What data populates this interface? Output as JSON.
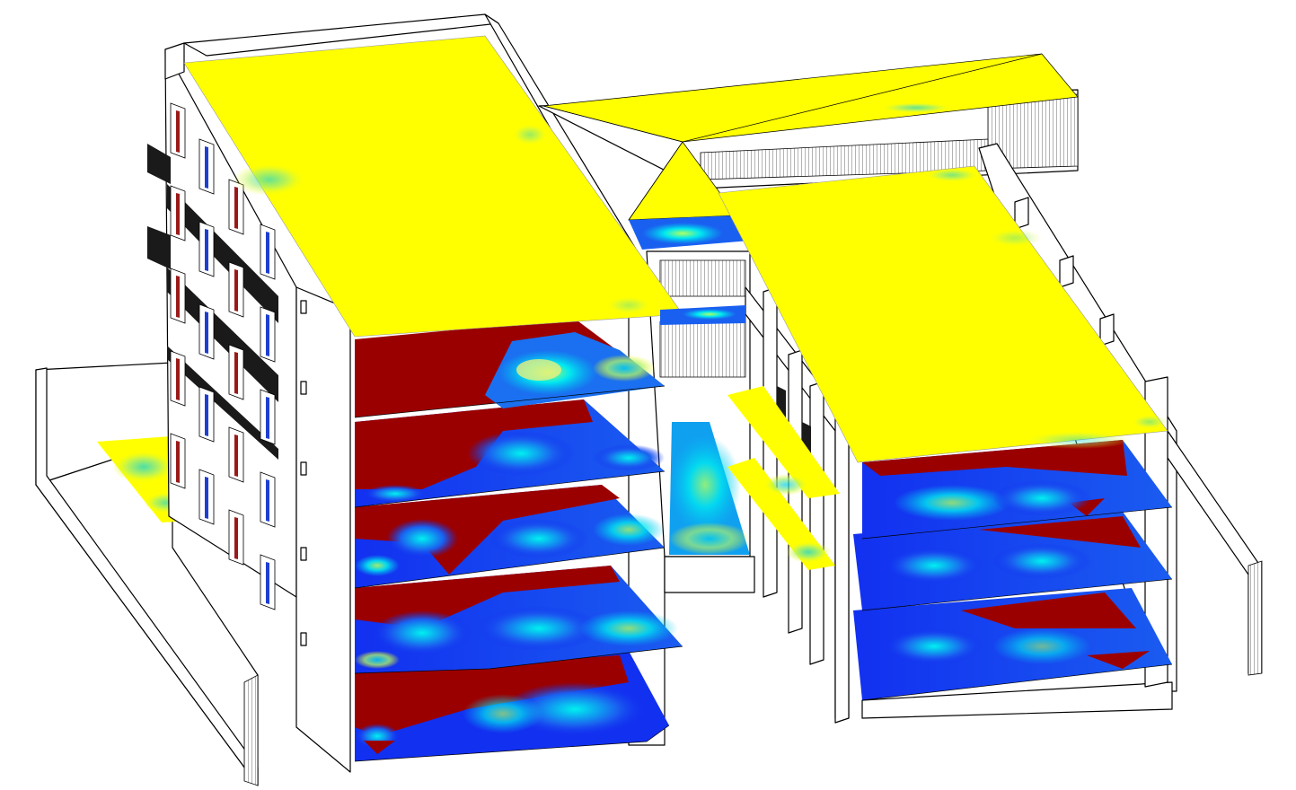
{
  "colors": {
    "yellow": "#ffff00",
    "red": "#9b0000",
    "blue": "#1230f0",
    "cyan": "#00e8f0",
    "green": "#9ef05a",
    "outline": "#000000",
    "background": "#ffffff"
  },
  "model": {
    "description_visible_text": "",
    "left_block_floors": 5,
    "right_block_floors": 3,
    "has_roof_planes": true
  }
}
